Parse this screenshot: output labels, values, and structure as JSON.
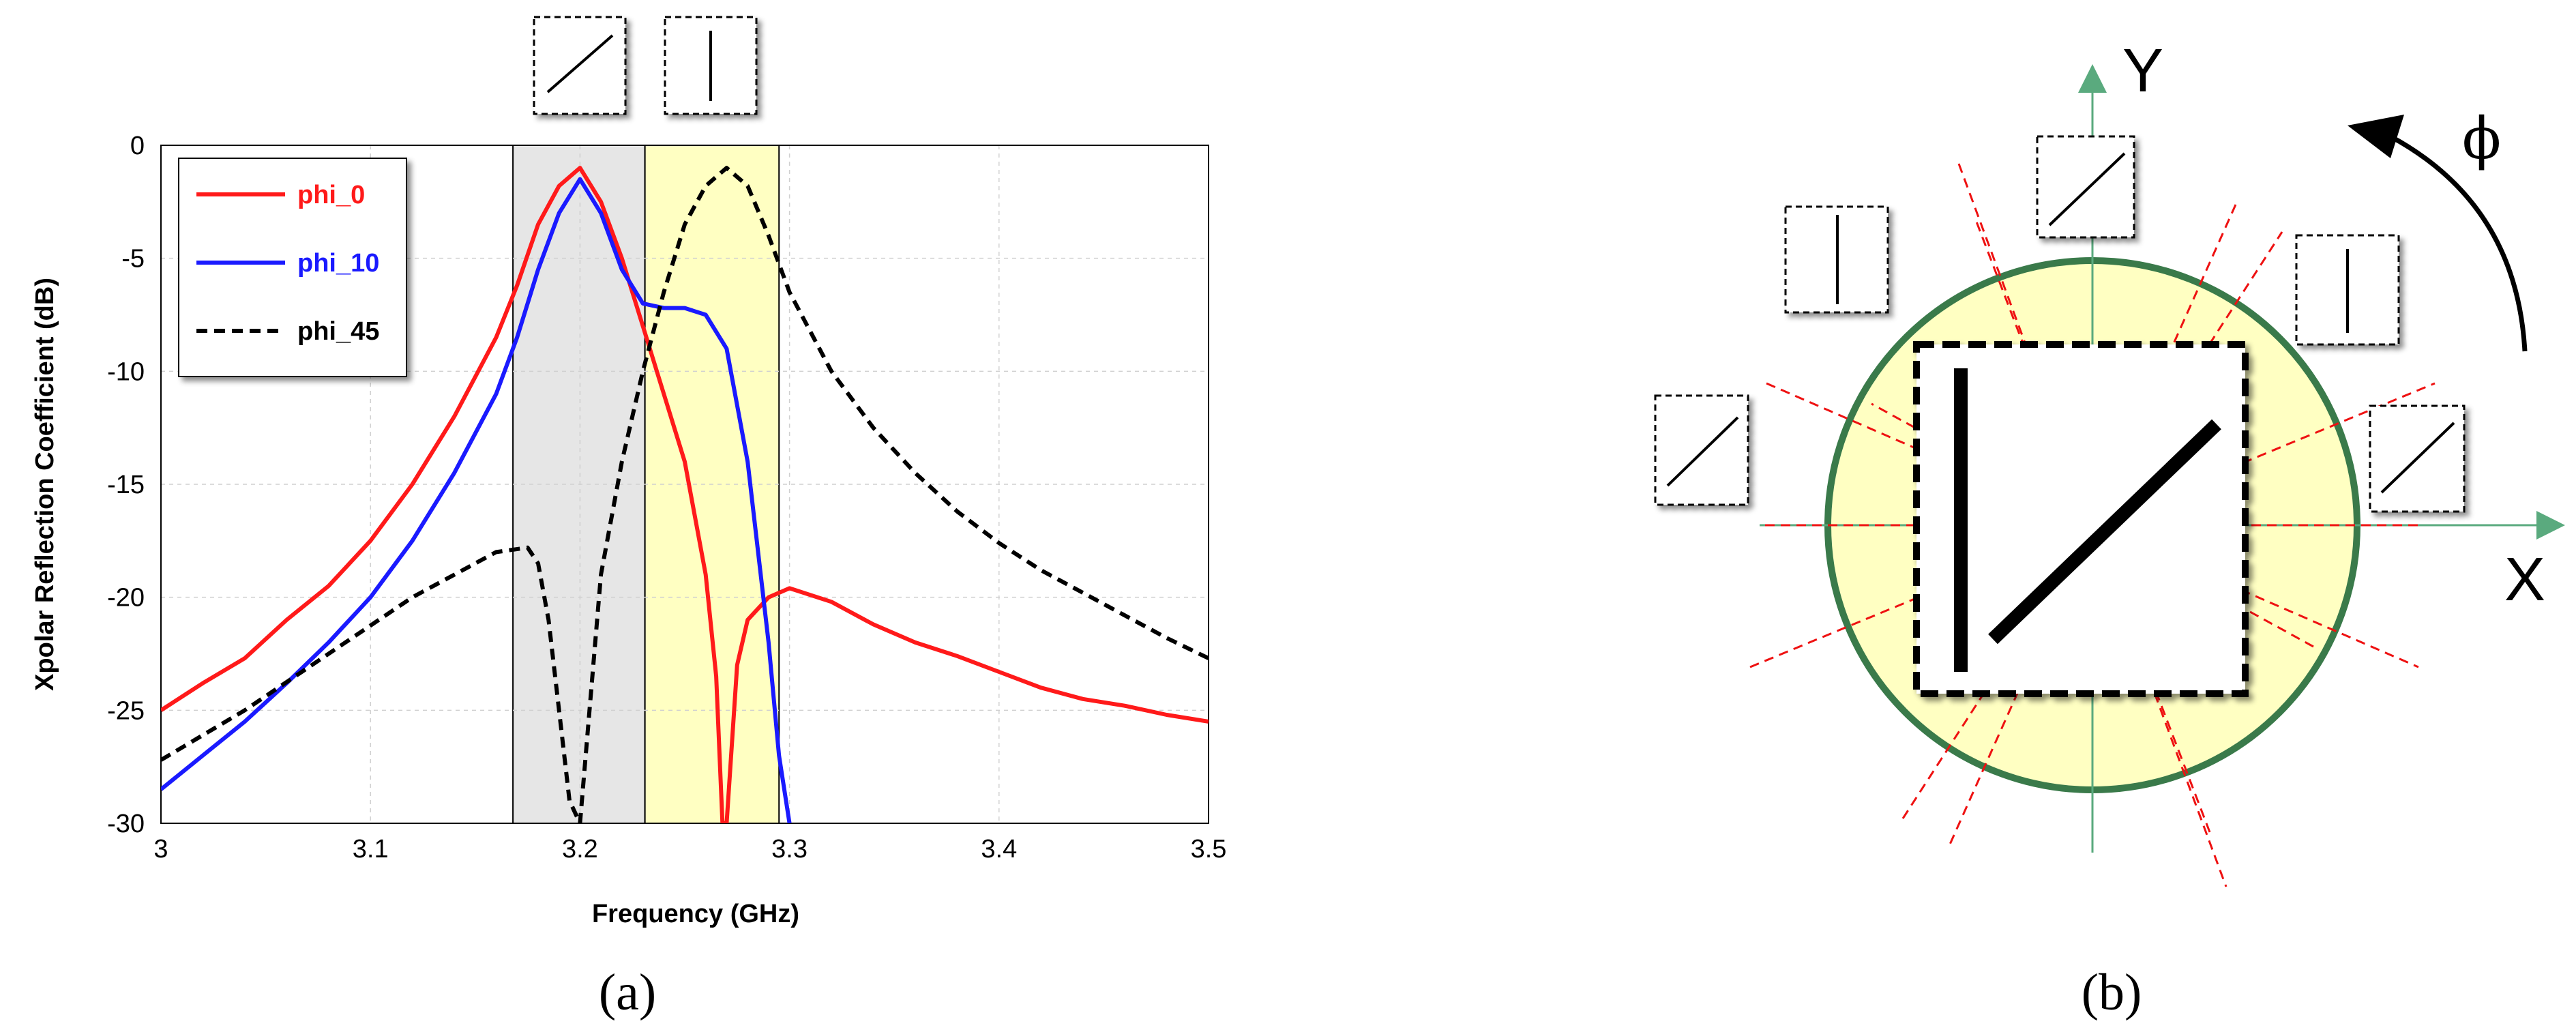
{
  "chart_data": [
    {
      "type": "line",
      "xlabel": "Frequency (GHz)",
      "ylabel": "Xpolar Reflection Coefficient (dB)",
      "xlim": [
        3.0,
        3.5
      ],
      "ylim": [
        -30,
        0
      ],
      "xticks": [
        "3",
        "3.1",
        "3.2",
        "3.3",
        "3.4",
        "3.5"
      ],
      "yticks": [
        "0",
        "-5",
        "-10",
        "-15",
        "-20",
        "-25",
        "-30"
      ],
      "grid": true,
      "legend_position": "top-left",
      "shaded_bands": [
        {
          "x": [
            3.168,
            3.231
          ],
          "color": "#e6e6e6"
        },
        {
          "x": [
            3.231,
            3.295
          ],
          "color": "#ffffc2"
        }
      ],
      "series": [
        {
          "name": "phi_0",
          "color": "#ff1a1a",
          "dash": "solid",
          "x": [
            3.0,
            3.02,
            3.04,
            3.06,
            3.08,
            3.1,
            3.12,
            3.14,
            3.16,
            3.17,
            3.18,
            3.19,
            3.2,
            3.21,
            3.22,
            3.23,
            3.24,
            3.25,
            3.26,
            3.265,
            3.268,
            3.27,
            3.275,
            3.28,
            3.29,
            3.3,
            3.32,
            3.34,
            3.36,
            3.38,
            3.4,
            3.42,
            3.44,
            3.46,
            3.48,
            3.5
          ],
          "y": [
            -25.0,
            -23.8,
            -22.7,
            -21.0,
            -19.5,
            -17.5,
            -15.0,
            -12.0,
            -8.5,
            -6.2,
            -3.5,
            -1.8,
            -1.0,
            -2.5,
            -5.0,
            -8.0,
            -11.0,
            -14.0,
            -19.0,
            -23.5,
            -30.0,
            -30.0,
            -23.0,
            -21.0,
            -20.0,
            -19.6,
            -20.2,
            -21.2,
            -22.0,
            -22.6,
            -23.3,
            -24.0,
            -24.5,
            -24.8,
            -25.2,
            -25.5
          ]
        },
        {
          "name": "phi_10",
          "color": "#1a1aff",
          "dash": "solid",
          "x": [
            3.0,
            3.02,
            3.04,
            3.06,
            3.08,
            3.1,
            3.12,
            3.14,
            3.16,
            3.17,
            3.18,
            3.19,
            3.2,
            3.21,
            3.22,
            3.23,
            3.24,
            3.25,
            3.26,
            3.27,
            3.28,
            3.29,
            3.295,
            3.3
          ],
          "y": [
            -28.5,
            -27.0,
            -25.5,
            -23.8,
            -22.0,
            -20.0,
            -17.5,
            -14.5,
            -11.0,
            -8.5,
            -5.5,
            -3.0,
            -1.5,
            -3.0,
            -5.5,
            -7.0,
            -7.2,
            -7.2,
            -7.5,
            -9.0,
            -14.0,
            -22.0,
            -27.0,
            -30.0
          ]
        },
        {
          "name": "phi_45",
          "color": "#000000",
          "dash": "dashed",
          "x": [
            3.0,
            3.04,
            3.08,
            3.12,
            3.16,
            3.175,
            3.18,
            3.185,
            3.19,
            3.195,
            3.2,
            3.21,
            3.22,
            3.23,
            3.24,
            3.25,
            3.26,
            3.27,
            3.28,
            3.29,
            3.3,
            3.32,
            3.34,
            3.36,
            3.38,
            3.4,
            3.42,
            3.44,
            3.46,
            3.48,
            3.5
          ],
          "y": [
            -27.2,
            -25.0,
            -22.5,
            -20.0,
            -18.0,
            -17.8,
            -18.5,
            -21.0,
            -25.0,
            -29.0,
            -30.0,
            -19.0,
            -14.0,
            -10.0,
            -6.5,
            -3.5,
            -1.8,
            -1.0,
            -1.8,
            -4.0,
            -6.5,
            -10.0,
            -12.5,
            -14.5,
            -16.2,
            -17.6,
            -18.8,
            -19.8,
            -20.8,
            -21.8,
            -22.7
          ]
        }
      ]
    }
  ],
  "panel_labels": [
    "(a)",
    "(b)"
  ],
  "diagram": {
    "axis_x_label": "X",
    "axis_y_label": "Y",
    "angle_label": "ϕ",
    "colors": {
      "disk_fill": "#ffffc2",
      "disk_border": "#3a7a4a",
      "axes": "#5aaa7e",
      "dashed_lines": "#ee1111"
    }
  }
}
